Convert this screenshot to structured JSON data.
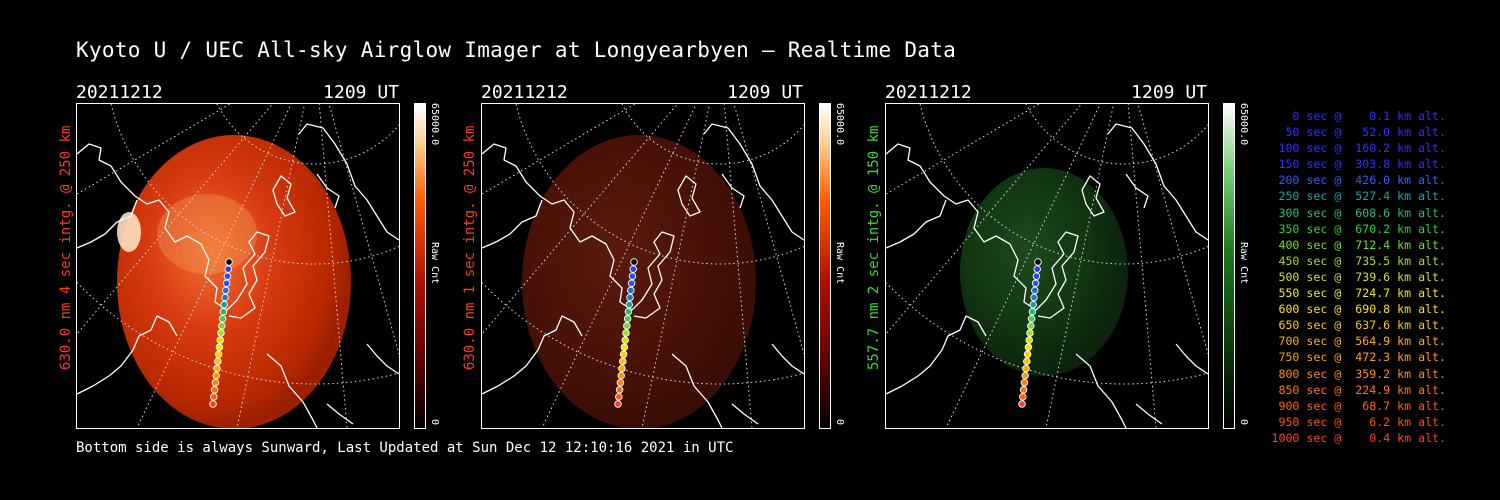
{
  "title": "Kyoto U / UEC All-sky Airglow Imager at Longyearbyen — Realtime Data",
  "footer": "Bottom side is always Sunward, Last Updated at Sun Dec 12 12:10:16 2021 in UTC",
  "panels": [
    {
      "date": "20211212",
      "time": "1209 UT",
      "side_label": "630.0 nm 4 sec intg. @ 250 km",
      "label_color": "#ff3a1a",
      "cb_max": "65000.0",
      "cb_unit": "Raw Cnt",
      "cb_min": "0",
      "colormap": "red",
      "intensity": 1.0
    },
    {
      "date": "20211212",
      "time": "1209 UT",
      "side_label": "630.0 nm 1 sec intg. @ 250 km",
      "label_color": "#ff3a1a",
      "cb_max": "65000.0",
      "cb_unit": "Raw Cnt",
      "cb_min": "0",
      "colormap": "red",
      "intensity": 0.35
    },
    {
      "date": "20211212",
      "time": "1209 UT",
      "side_label": "557.7 nm 2 sec intg. @ 150 km",
      "label_color": "#33dd33",
      "cb_max": "65000.0",
      "cb_unit": "Raw Cnt",
      "cb_min": "0",
      "colormap": "green",
      "intensity": 0.5
    }
  ],
  "legend": [
    {
      "text": "   0 sec @    0.1 km alt.",
      "color": "#3030ff"
    },
    {
      "text": "  50 sec @   52.0 km alt.",
      "color": "#3030ff"
    },
    {
      "text": " 100 sec @  160.2 km alt.",
      "color": "#3030ff"
    },
    {
      "text": " 150 sec @  303.8 km alt.",
      "color": "#3030ff"
    },
    {
      "text": " 200 sec @  426.0 km alt.",
      "color": "#2f5fff"
    },
    {
      "text": " 250 sec @  527.4 km alt.",
      "color": "#1fa0b0"
    },
    {
      "text": " 300 sec @  608.6 km alt.",
      "color": "#20c070"
    },
    {
      "text": " 350 sec @  670.2 km alt.",
      "color": "#30d030"
    },
    {
      "text": " 400 sec @  712.4 km alt.",
      "color": "#70e020"
    },
    {
      "text": " 450 sec @  735.5 km alt.",
      "color": "#a0e020"
    },
    {
      "text": " 500 sec @  739.6 km alt.",
      "color": "#d0e020"
    },
    {
      "text": " 550 sec @  724.7 km alt.",
      "color": "#f0f000"
    },
    {
      "text": " 600 sec @  690.8 km alt.",
      "color": "#ffe000"
    },
    {
      "text": " 650 sec @  637.6 km alt.",
      "color": "#ffc800"
    },
    {
      "text": " 700 sec @  564.9 km alt.",
      "color": "#ffb000"
    },
    {
      "text": " 750 sec @  472.3 km alt.",
      "color": "#ffa000"
    },
    {
      "text": " 800 sec @  359.2 km alt.",
      "color": "#ff9000"
    },
    {
      "text": " 850 sec @  224.9 km alt.",
      "color": "#ff7800"
    },
    {
      "text": " 900 sec @   68.7 km alt.",
      "color": "#ff6000"
    },
    {
      "text": " 950 sec @    6.2 km alt.",
      "color": "#ff5000"
    },
    {
      "text": "1000 sec @    0.4 km alt.",
      "color": "#ff4020"
    }
  ]
}
